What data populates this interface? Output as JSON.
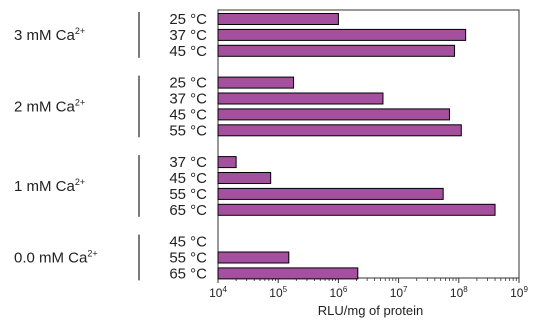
{
  "chart_data": {
    "type": "bar",
    "orientation": "horizontal",
    "x_scale": "log",
    "xlim": [
      10000,
      1000000000
    ],
    "xlabel": "RLU/mg of protein",
    "x_ticks": [
      {
        "value": 10000,
        "base": "10",
        "exp": "4"
      },
      {
        "value": 100000,
        "base": "10",
        "exp": "5"
      },
      {
        "value": 1000000,
        "base": "10",
        "exp": "6"
      },
      {
        "value": 10000000,
        "base": "10",
        "exp": "7"
      },
      {
        "value": 100000000,
        "base": "10",
        "exp": "8"
      },
      {
        "value": 1000000000,
        "base": "10",
        "exp": "9"
      }
    ],
    "bar_color": "#a5509f",
    "bar_edge_color": "#000000",
    "groups": [
      {
        "label": "3 mM Ca",
        "sup": "2+",
        "bars": [
          {
            "label": "25 °C",
            "value": 1000000
          },
          {
            "label": "37 °C",
            "value": 130000000
          },
          {
            "label": "45 °C",
            "value": 85000000
          }
        ]
      },
      {
        "label": "2 mM Ca",
        "sup": "2+",
        "bars": [
          {
            "label": "25 °C",
            "value": 180000
          },
          {
            "label": "37 °C",
            "value": 5500000
          },
          {
            "label": "45 °C",
            "value": 70000000
          },
          {
            "label": "55 °C",
            "value": 110000000
          }
        ]
      },
      {
        "label": "1 mM Ca",
        "sup": "2+",
        "bars": [
          {
            "label": "37 °C",
            "value": 20000
          },
          {
            "label": "45 °C",
            "value": 75000
          },
          {
            "label": "55 °C",
            "value": 55000000
          },
          {
            "label": "65 °C",
            "value": 400000000
          }
        ]
      },
      {
        "label": "0.0 mM Ca",
        "sup": "2+",
        "bars": [
          {
            "label": "45 °C",
            "value": null
          },
          {
            "label": "55 °C",
            "value": 150000
          },
          {
            "label": "65 °C",
            "value": 2100000
          }
        ]
      }
    ]
  }
}
